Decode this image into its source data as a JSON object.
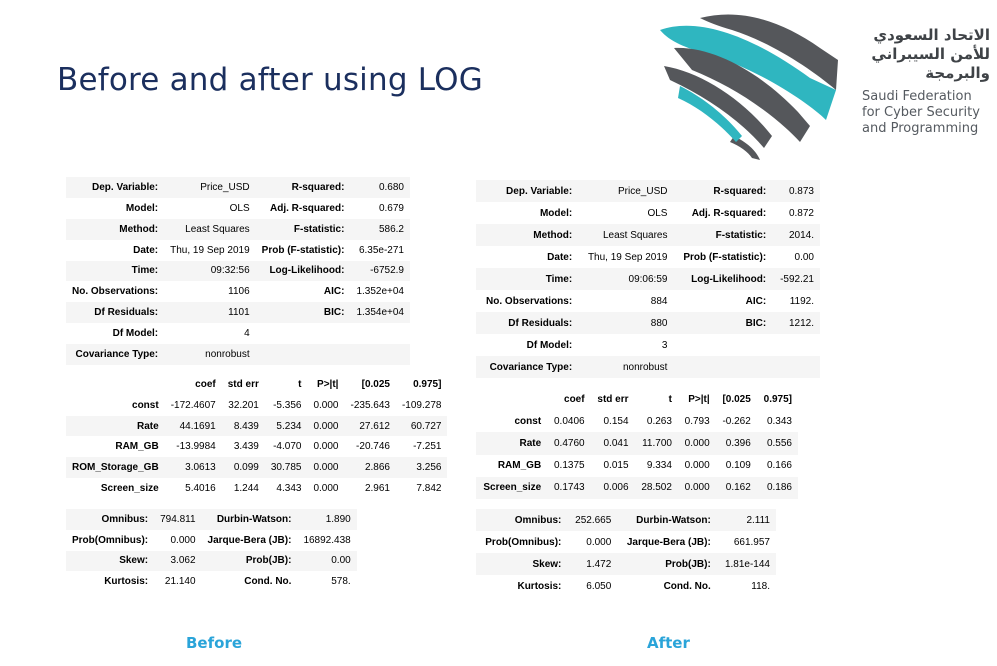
{
  "title": "Before and after using LOG",
  "logo": {
    "arabic_lines": [
      "الاتحاد السعودي",
      "للأمن السيبراني",
      "والبرمجة"
    ],
    "english_lines": [
      "Saudi Federation",
      "for Cyber Security",
      "and Programming"
    ],
    "colors": {
      "teal": "#2fb6c0",
      "gray": "#55575b"
    }
  },
  "before": {
    "caption": "Before",
    "model_info": [
      [
        "Dep. Variable:",
        "Price_USD",
        "R-squared:",
        "0.680"
      ],
      [
        "Model:",
        "OLS",
        "Adj. R-squared:",
        "0.679"
      ],
      [
        "Method:",
        "Least Squares",
        "F-statistic:",
        "586.2"
      ],
      [
        "Date:",
        "Thu, 19 Sep 2019",
        "Prob (F-statistic):",
        "6.35e-271"
      ],
      [
        "Time:",
        "09:32:56",
        "Log-Likelihood:",
        "-6752.9"
      ],
      [
        "No. Observations:",
        "1106",
        "AIC:",
        "1.352e+04"
      ],
      [
        "Df Residuals:",
        "1101",
        "BIC:",
        "1.354e+04"
      ],
      [
        "Df Model:",
        "4",
        "",
        ""
      ],
      [
        "Covariance Type:",
        "nonrobust",
        "",
        ""
      ]
    ],
    "coef_header": [
      "",
      "coef",
      "std err",
      "t",
      "P>|t|",
      "[0.025",
      "0.975]"
    ],
    "coef_rows": [
      [
        "const",
        "-172.4607",
        "32.201",
        "-5.356",
        "0.000",
        "-235.643",
        "-109.278"
      ],
      [
        "Rate",
        "44.1691",
        "8.439",
        "5.234",
        "0.000",
        "27.612",
        "60.727"
      ],
      [
        "RAM_GB",
        "-13.9984",
        "3.439",
        "-4.070",
        "0.000",
        "-20.746",
        "-7.251"
      ],
      [
        "ROM_Storage_GB",
        "3.0613",
        "0.099",
        "30.785",
        "0.000",
        "2.866",
        "3.256"
      ],
      [
        "Screen_size",
        "5.4016",
        "1.244",
        "4.343",
        "0.000",
        "2.961",
        "7.842"
      ]
    ],
    "diagnostics": [
      [
        "Omnibus:",
        "794.811",
        "Durbin-Watson:",
        "1.890"
      ],
      [
        "Prob(Omnibus):",
        "0.000",
        "Jarque-Bera (JB):",
        "16892.438"
      ],
      [
        "Skew:",
        "3.062",
        "Prob(JB):",
        "0.00"
      ],
      [
        "Kurtosis:",
        "21.140",
        "Cond. No.",
        "578."
      ]
    ]
  },
  "after": {
    "caption": "After",
    "model_info": [
      [
        "Dep. Variable:",
        "Price_USD",
        "R-squared:",
        "0.873"
      ],
      [
        "Model:",
        "OLS",
        "Adj. R-squared:",
        "0.872"
      ],
      [
        "Method:",
        "Least Squares",
        "F-statistic:",
        "2014."
      ],
      [
        "Date:",
        "Thu, 19 Sep 2019",
        "Prob (F-statistic):",
        "0.00"
      ],
      [
        "Time:",
        "09:06:59",
        "Log-Likelihood:",
        "-592.21"
      ],
      [
        "No. Observations:",
        "884",
        "AIC:",
        "1192."
      ],
      [
        "Df Residuals:",
        "880",
        "BIC:",
        "1212."
      ],
      [
        "Df Model:",
        "3",
        "",
        ""
      ],
      [
        "Covariance Type:",
        "nonrobust",
        "",
        ""
      ]
    ],
    "coef_header": [
      "",
      "coef",
      "std err",
      "t",
      "P>|t|",
      "[0.025",
      "0.975]"
    ],
    "coef_rows": [
      [
        "const",
        "0.0406",
        "0.154",
        "0.263",
        "0.793",
        "-0.262",
        "0.343"
      ],
      [
        "Rate",
        "0.4760",
        "0.041",
        "11.700",
        "0.000",
        "0.396",
        "0.556"
      ],
      [
        "RAM_GB",
        "0.1375",
        "0.015",
        "9.334",
        "0.000",
        "0.109",
        "0.166"
      ],
      [
        "Screen_size",
        "0.1743",
        "0.006",
        "28.502",
        "0.000",
        "0.162",
        "0.186"
      ]
    ],
    "diagnostics": [
      [
        "Omnibus:",
        "252.665",
        "Durbin-Watson:",
        "2.111"
      ],
      [
        "Prob(Omnibus):",
        "0.000",
        "Jarque-Bera (JB):",
        "661.957"
      ],
      [
        "Skew:",
        "1.472",
        "Prob(JB):",
        "1.81e-144"
      ],
      [
        "Kurtosis:",
        "6.050",
        "Cond. No.",
        "118."
      ]
    ]
  }
}
